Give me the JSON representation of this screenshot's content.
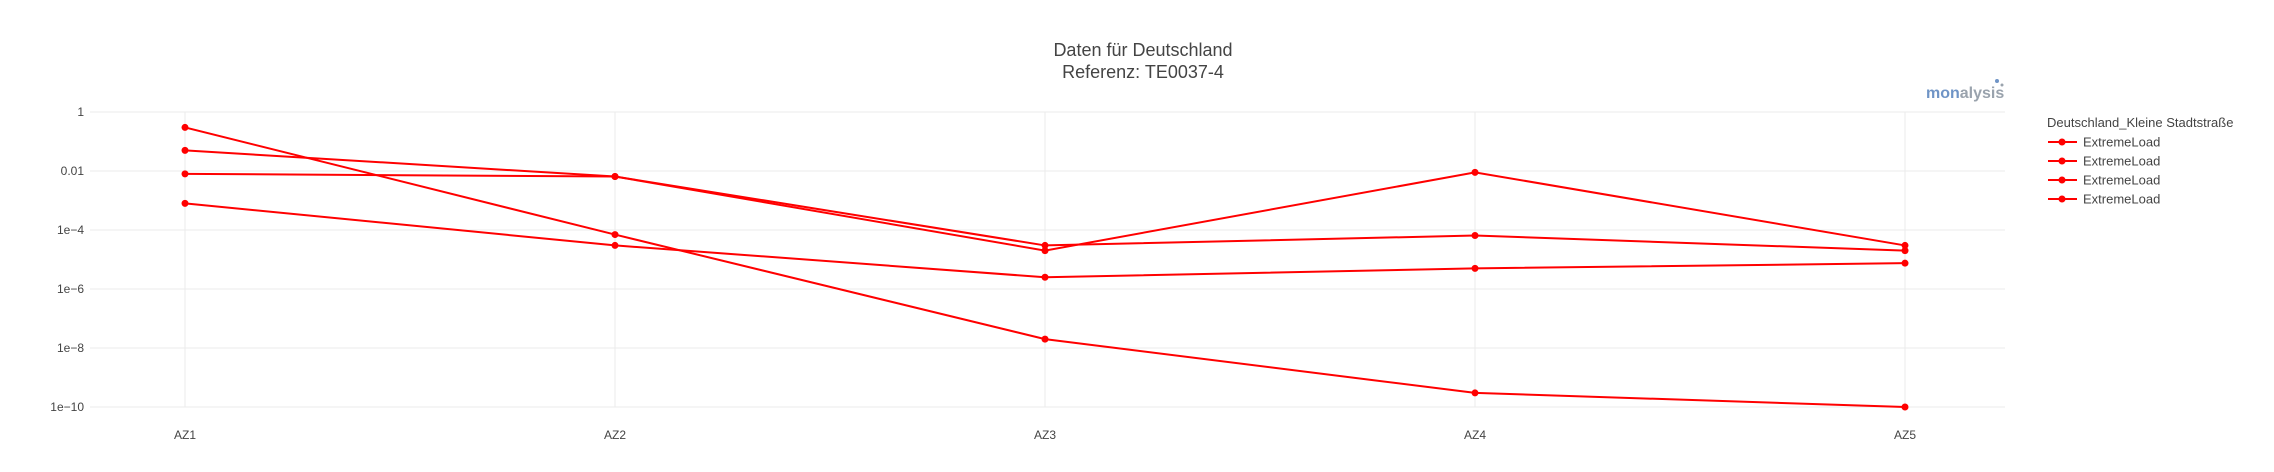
{
  "chart_data": {
    "type": "line",
    "title_lines": [
      "Daten für Deutschland",
      "Referenz: TE0037-4"
    ],
    "categories": [
      "AZ1",
      "AZ2",
      "AZ3",
      "AZ4",
      "AZ5"
    ],
    "y_scale": "log",
    "y_ticks": [
      {
        "value": 1,
        "label": "1"
      },
      {
        "value": 0.01,
        "label": "0.01"
      },
      {
        "value": 0.0001,
        "label": "1e−4"
      },
      {
        "value": 1e-06,
        "label": "1e−6"
      },
      {
        "value": 1e-08,
        "label": "1e−8"
      },
      {
        "value": 1e-10,
        "label": "1e−10"
      }
    ],
    "ylim": [
      1e-10,
      1
    ],
    "grid": true,
    "legend_title": "Deutschland_Kleine Stadtstraße",
    "legend_position": "right",
    "line_color": "#ff0000",
    "series": [
      {
        "name": "ExtremeLoad",
        "values": [
          0.3,
          7e-05,
          2e-08,
          3e-10,
          1e-10
        ]
      },
      {
        "name": "ExtremeLoad",
        "values": [
          0.05,
          0.0065,
          3e-05,
          6.5e-05,
          2e-05
        ]
      },
      {
        "name": "ExtremeLoad",
        "values": [
          0.008,
          0.0065,
          2e-05,
          0.009,
          3e-05
        ]
      },
      {
        "name": "ExtremeLoad",
        "values": [
          0.0008,
          3e-05,
          2.5e-06,
          5e-06,
          7.5e-06
        ]
      }
    ]
  },
  "logo": {
    "part1": "mon",
    "part2": "alysis"
  }
}
